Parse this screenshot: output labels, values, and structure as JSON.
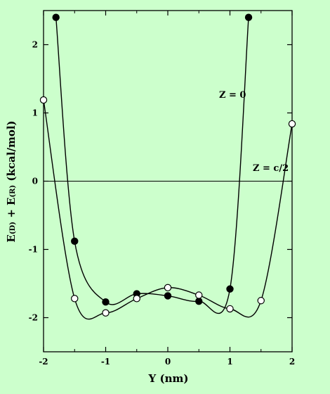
{
  "chart_data": {
    "type": "scatter",
    "title": "",
    "xlabel": "Y (nm)",
    "ylabel_parts": [
      "E",
      "(D)",
      " + E",
      "(R)",
      " (kcal/mol)"
    ],
    "xlim": [
      -2,
      2
    ],
    "ylim": [
      -2.5,
      2.5
    ],
    "x_ticks": [
      -2,
      -1,
      0,
      1,
      2
    ],
    "y_ticks": [
      -2,
      -1,
      0,
      1,
      2
    ],
    "x_tick_labels": [
      "-2",
      "-1",
      "0",
      "1",
      "2"
    ],
    "y_tick_labels": [
      "-2",
      "-1",
      "0",
      "1",
      "2"
    ],
    "zero_line": true,
    "grid": false,
    "series": [
      {
        "name": "Z = 0",
        "marker": "filled-circle",
        "points": [
          {
            "x": -1.8,
            "y": 2.4
          },
          {
            "x": -1.5,
            "y": -0.88
          },
          {
            "x": -1.0,
            "y": -1.77
          },
          {
            "x": -0.5,
            "y": -1.65
          },
          {
            "x": 0.0,
            "y": -1.68
          },
          {
            "x": 0.5,
            "y": -1.76
          },
          {
            "x": 1.0,
            "y": -1.58
          },
          {
            "x": 1.3,
            "y": 2.4
          }
        ]
      },
      {
        "name": "Z = c/2",
        "marker": "open-circle",
        "points": [
          {
            "x": -2.0,
            "y": 1.19
          },
          {
            "x": -1.5,
            "y": -1.72
          },
          {
            "x": -1.0,
            "y": -1.93
          },
          {
            "x": -0.5,
            "y": -1.72
          },
          {
            "x": 0.0,
            "y": -1.56
          },
          {
            "x": 0.5,
            "y": -1.67
          },
          {
            "x": 1.0,
            "y": -1.87
          },
          {
            "x": 1.5,
            "y": -1.75
          },
          {
            "x": 2.0,
            "y": 0.84
          }
        ]
      }
    ],
    "colors": {
      "background": "#ccffcc",
      "ink": "#000000",
      "open_marker_fill": "#ffffff"
    }
  }
}
